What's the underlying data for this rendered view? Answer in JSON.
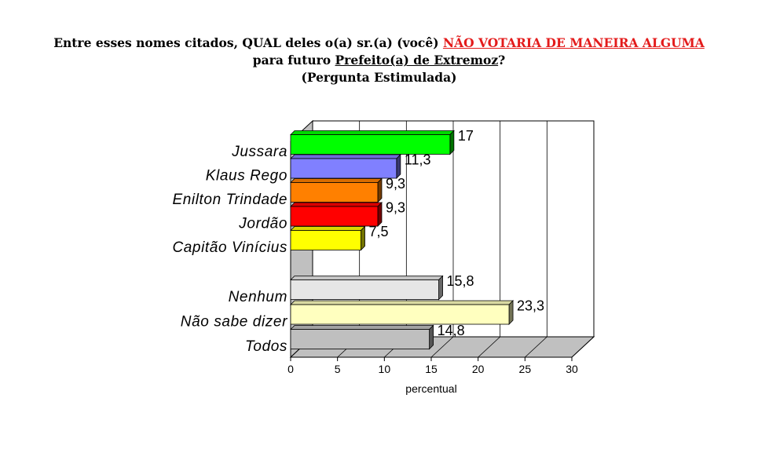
{
  "title": {
    "line1_prefix": "Entre esses nomes citados, QUAL deles o(a) sr.(a) (você) ",
    "line1_highlight": "NÃO VOTARIA DE MANEIRA ALGUMA",
    "line2_prefix": "para futuro ",
    "line2_underlined": "Prefeito(a) de Extremoz",
    "line2_suffix": "?",
    "line3": "(Pergunta Estimulada)"
  },
  "chart_data": {
    "type": "bar",
    "orientation": "horizontal",
    "categories": [
      "Jussara",
      "Klaus Rego",
      "Enilton Trindade",
      "Jordão",
      "Capitão Vinícius",
      "Nenhum",
      "Não sabe dizer",
      "Todos"
    ],
    "values": [
      17,
      11.3,
      9.3,
      9.3,
      7.5,
      15.8,
      23.3,
      14.8
    ],
    "value_labels": [
      "17",
      "11,3",
      "9,3",
      "9,3",
      "7,5",
      "15,8",
      "23,3",
      "14,8"
    ],
    "colors": [
      "#00ff00",
      "#8080ff",
      "#ff8000",
      "#ff0000",
      "#ffff00",
      "#e6e6e6",
      "#ffffbf",
      "#bfbfbf"
    ],
    "xlabel": "percentual",
    "xlim": [
      0,
      30
    ],
    "xticks": [
      "0",
      "5",
      "10",
      "15",
      "20",
      "25",
      "30"
    ],
    "grid": true,
    "three_d": true
  }
}
